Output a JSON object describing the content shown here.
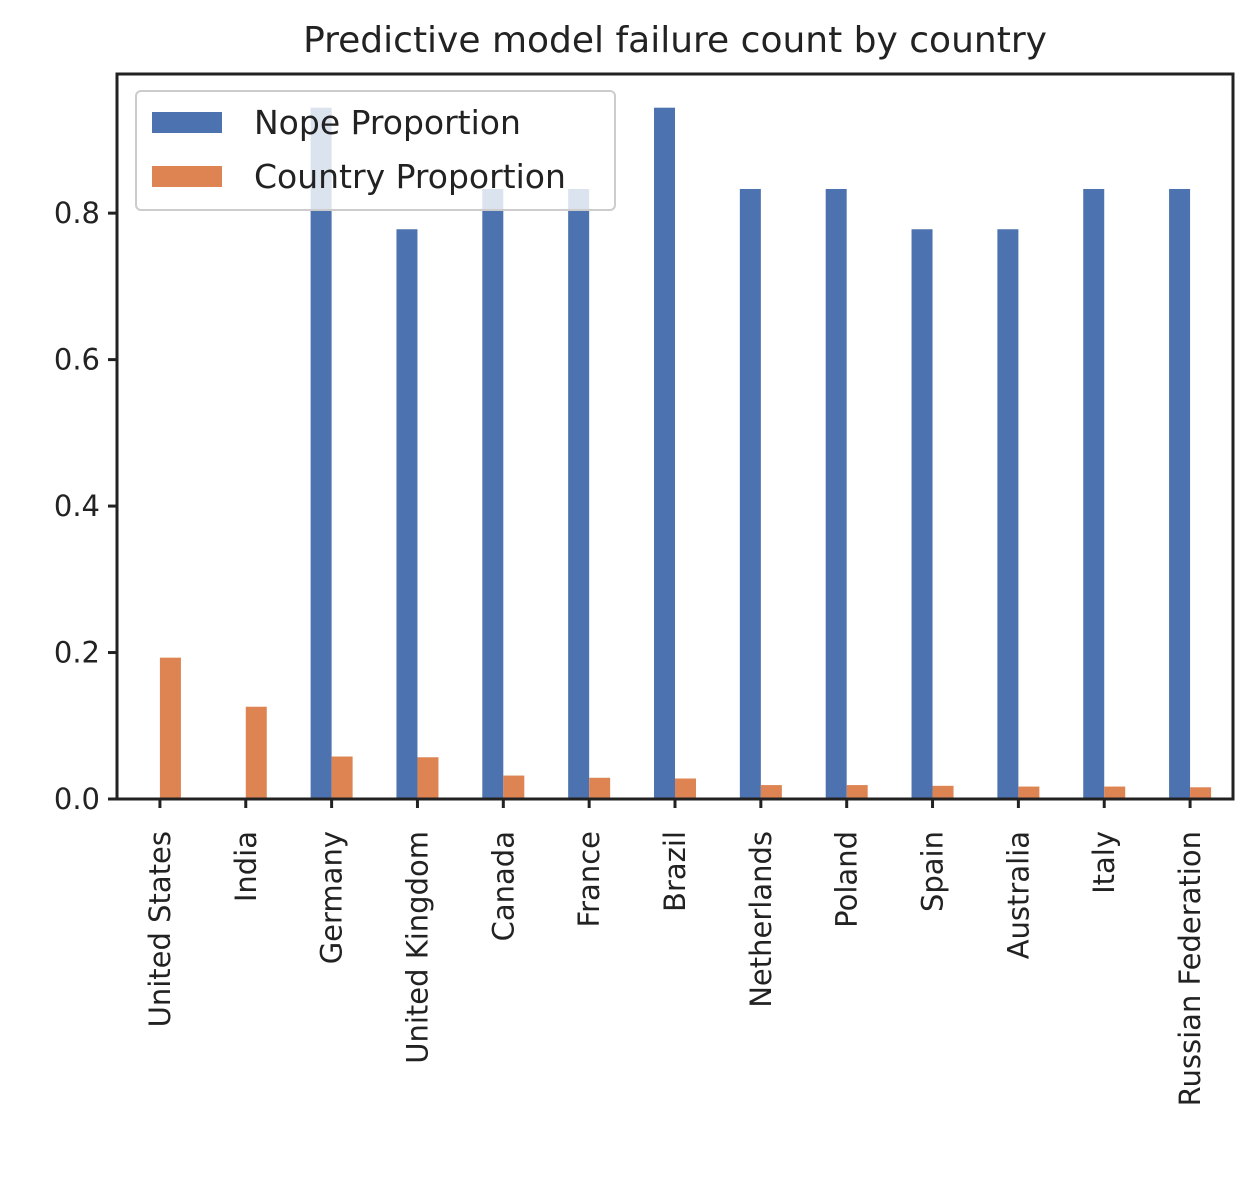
{
  "chart_data": {
    "type": "bar",
    "title": "Predictive model failure count by country",
    "xlabel": "",
    "ylabel": "",
    "ylim": [
      0,
      0.99
    ],
    "yticks": [
      "0.0",
      "0.2",
      "0.4",
      "0.6",
      "0.8"
    ],
    "ytick_values": [
      0,
      0.2,
      0.4,
      0.6,
      0.8
    ],
    "categories": [
      "United States",
      "India",
      "Germany",
      "United Kingdom",
      "Canada",
      "France",
      "Brazil",
      "Netherlands",
      "Poland",
      "Spain",
      "Australia",
      "Italy",
      "Russian Federation"
    ],
    "series": [
      {
        "name": "Nope Proportion",
        "color": "#4c72b0",
        "values": [
          0,
          0,
          0.944,
          0.778,
          0.833,
          0.833,
          0.944,
          0.833,
          0.833,
          0.778,
          0.778,
          0.833,
          0.833
        ]
      },
      {
        "name": "Country Proportion",
        "color": "#dd8452",
        "values": [
          0.193,
          0.126,
          0.058,
          0.057,
          0.032,
          0.029,
          0.028,
          0.019,
          0.019,
          0.018,
          0.017,
          0.017,
          0.016
        ]
      }
    ],
    "legend_position": "top-left",
    "grid": false
  }
}
